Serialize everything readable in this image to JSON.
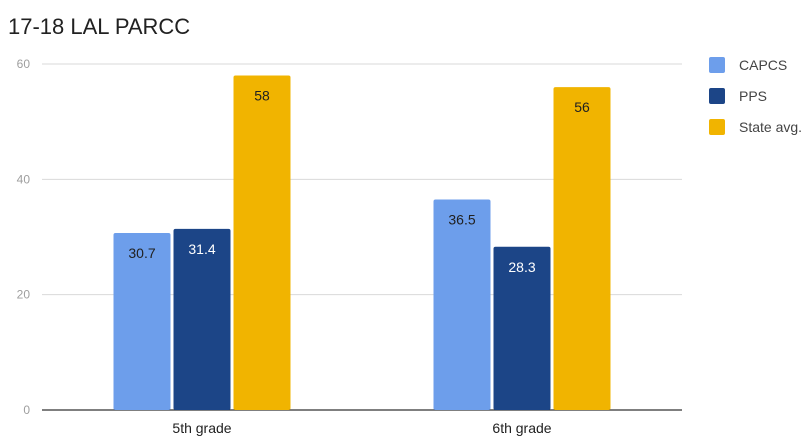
{
  "chart_data": {
    "type": "bar",
    "title": "17-18 LAL PARCC",
    "categories": [
      "5th grade",
      "6th grade"
    ],
    "series": [
      {
        "name": "CAPCS",
        "values": [
          30.7,
          36.5
        ],
        "color": "#6d9eeb",
        "label_color": "#212121"
      },
      {
        "name": "PPS",
        "values": [
          31.4,
          28.3
        ],
        "color": "#1c4587",
        "label_color": "#ffffff"
      },
      {
        "name": "State avg.",
        "values": [
          58,
          56
        ],
        "color": "#f1b400",
        "label_color": "#212121"
      }
    ],
    "ylim": [
      0,
      60
    ],
    "yticks": [
      0,
      20,
      40,
      60
    ],
    "grid": true,
    "legend_position": "right",
    "xlabel": "",
    "ylabel": ""
  }
}
